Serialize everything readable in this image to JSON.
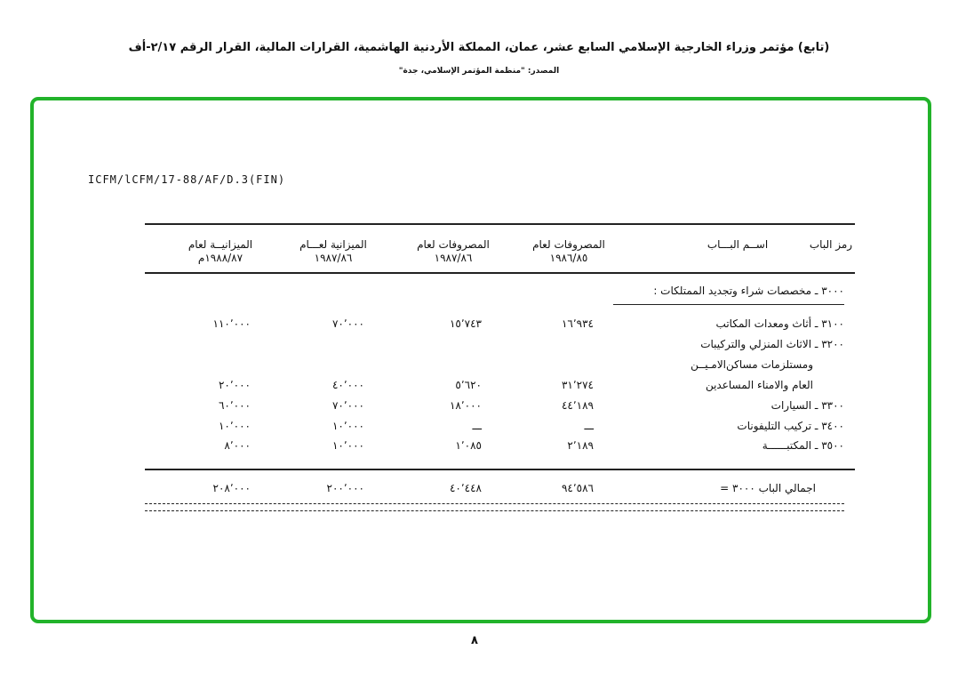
{
  "header": {
    "title": "(تابع) مؤتمر وزراء الخارجية الإسلامي السابع عشر، عمان، المملكة الأردنية الهاشمية، القرارات المالية، القرار الرقم ٢/١٧-أف",
    "source": "المصدر: \"منظمة المؤتمر الإسلامي، جدة\""
  },
  "document": {
    "reference": "ICFM/lCFM/17-88/AF/D.3(FIN)",
    "columns": [
      {
        "line1": "رمز الباب",
        "line2": ""
      },
      {
        "line1": "اســم البـــاب",
        "line2": ""
      },
      {
        "line1": "المصروفات لعام",
        "line2": "١٩٨٦/٨٥"
      },
      {
        "line1": "المصروفات لعام",
        "line2": "١٩٨٧/٨٦"
      },
      {
        "line1": "الميزانية لعـــام",
        "line2": "١٩٨٧/٨٦"
      },
      {
        "line1": "الميزانيــة لعام",
        "line2": "١٩٨٨/٨٧م"
      }
    ],
    "section_heading": "٣٠٠٠ ـ مخصصات شراء وتجديد الممتلكات :",
    "rows": [
      {
        "label": "٣١٠٠ ـ أثاث ومعدات المكاتب",
        "exp8685": "١٦٬٩٣٤",
        "exp8786": "١٥٬٧٤٣",
        "bud8786": "٧٠٬٠٠٠",
        "bud8887": "١١٠٬٠٠٠"
      },
      {
        "label": "٣٢٠٠ ـ الاثاث المنزلي والتركيبات",
        "exp8685": "",
        "exp8786": "",
        "bud8786": "",
        "bud8887": ""
      },
      {
        "label": "ومستلزمات مساكن‌الامـيــن",
        "exp8685": "",
        "exp8786": "",
        "bud8786": "",
        "bud8887": ""
      },
      {
        "label": "العام والامناء المساعدين",
        "exp8685": "٣١٬٢٧٤",
        "exp8786": "٥٬٦٢٠",
        "bud8786": "٤٠٬٠٠٠",
        "bud8887": "٢٠٬٠٠٠"
      },
      {
        "label": "٣٣٠٠ ـ السيارات",
        "exp8685": "٤٤٬١٨٩",
        "exp8786": "١٨٬٠٠٠",
        "bud8786": "٧٠٬٠٠٠",
        "bud8887": "٦٠٬٠٠٠"
      },
      {
        "label": "٣٤٠٠ ـ تركيب التليفونات",
        "exp8685": "ـــ",
        "exp8786": "ـــ",
        "bud8786": "١٠٬٠٠٠",
        "bud8887": "١٠٬٠٠٠"
      },
      {
        "label": "٣٥٠٠ ـ المكتبــــــة",
        "exp8685": "٢٬١٨٩",
        "exp8786": "١٬٠٨٥",
        "bud8786": "١٠٬٠٠٠",
        "bud8887": "٨٬٠٠٠"
      }
    ],
    "total": {
      "label": "اجمالي الباب  ٣٠٠٠  =",
      "exp8685": "٩٤٬٥٨٦",
      "exp8786": "٤٠٬٤٤٨",
      "bud8786": "٢٠٠٬٠٠٠",
      "bud8887": "٢٠٨٬٠٠٠"
    },
    "page_number": "٨"
  },
  "colors": {
    "frame": "#22b32a"
  }
}
